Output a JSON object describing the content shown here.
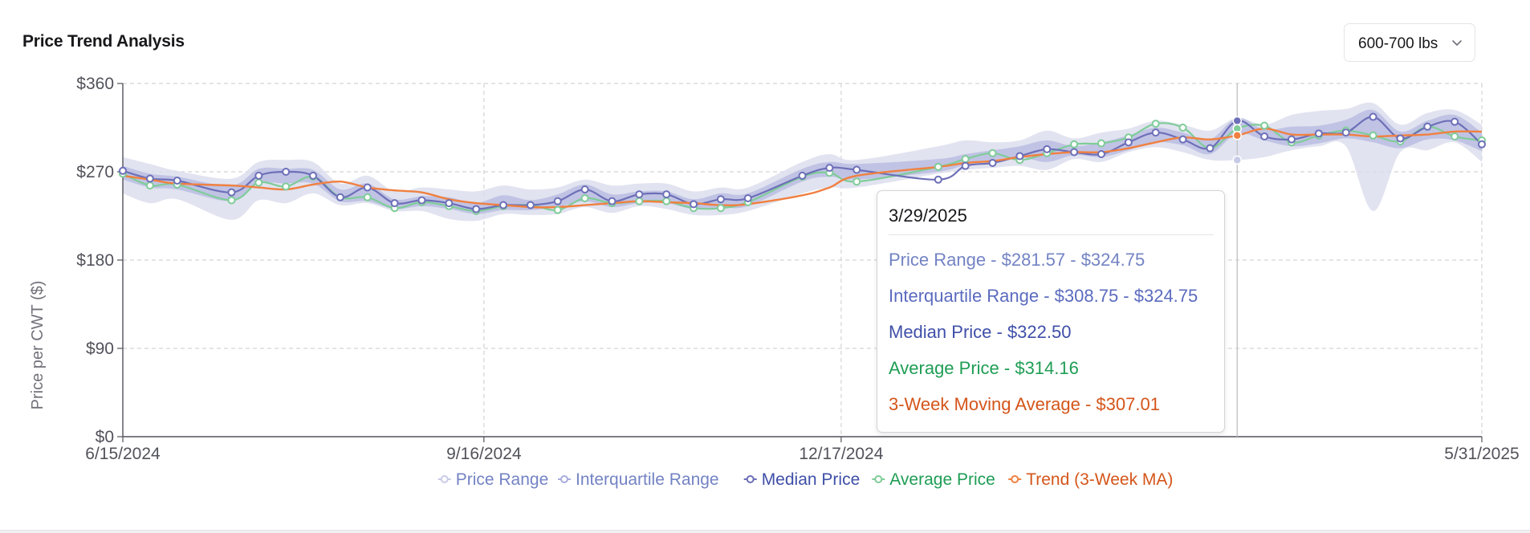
{
  "header": {
    "title": "Price Trend Analysis",
    "weight_select": {
      "value": "600-700 lbs"
    }
  },
  "tooltip": {
    "date": "3/29/2025",
    "price_range": "Price Range - $281.57 - $324.75",
    "interquartile_range": "Interquartile Range - $308.75 - $324.75",
    "median_price": "Median Price - $322.50",
    "average_price": "Average Price - $314.16",
    "moving_average": "3-Week Moving Average - $307.01"
  },
  "chart_data": {
    "type": "line",
    "title": "Price Trend Analysis",
    "ylabel": "Price per CWT ($)",
    "xlabel": "",
    "x_start": "6/15/2024",
    "x_end": "5/31/2025",
    "x_tick_labels": [
      "6/15/2024",
      "9/16/2024",
      "12/17/2024",
      "5/31/2025"
    ],
    "x_tick_positions": [
      "2024-06-15",
      "2024-09-16",
      "2024-12-17",
      "2025-05-31"
    ],
    "ylim": [
      0,
      360
    ],
    "y_ticks": [
      0,
      90,
      180,
      270,
      360
    ],
    "y_tick_labels": [
      "$0",
      "$90",
      "$180",
      "$270",
      "$360"
    ],
    "grid": true,
    "legend_position": "bottom",
    "colors": {
      "range_fill": "#d9dcec",
      "iqr_fill": "#a5a9db",
      "median": "#6d6fb8",
      "average": "#7fcc99",
      "trend": "#f08040",
      "median_text": "#3f4fa8",
      "range_text": "#7383c4",
      "iqr_text": "#7383c4",
      "average_text": "#1f9d55",
      "trend_text": "#d4551a",
      "grid": "#d4d4d8",
      "axis": "#52525b"
    },
    "legend": [
      {
        "key": "range",
        "label": "Price Range",
        "text_color": "#7383c4",
        "marker_color": "#c7cbe6"
      },
      {
        "key": "iqr",
        "label": "Interquartile Range",
        "text_color": "#7383c4",
        "marker_color": "#a8acdc"
      },
      {
        "key": "median",
        "label": "Median Price",
        "text_color": "#3f4fa8",
        "marker_color": "#6d6fb8"
      },
      {
        "key": "average",
        "label": "Average Price",
        "text_color": "#1f9d55",
        "marker_color": "#7fcc99"
      },
      {
        "key": "trend",
        "label": "Trend (3-Week MA)",
        "text_color": "#d4551a",
        "marker_color": "#f08040"
      }
    ],
    "dates": [
      "2024-06-15",
      "2024-06-22",
      "2024-06-29",
      "2024-07-13",
      "2024-07-20",
      "2024-07-27",
      "2024-08-03",
      "2024-08-10",
      "2024-08-17",
      "2024-08-24",
      "2024-08-31",
      "2024-09-07",
      "2024-09-14",
      "2024-09-21",
      "2024-09-28",
      "2024-10-05",
      "2024-10-12",
      "2024-10-19",
      "2024-10-26",
      "2024-11-02",
      "2024-11-09",
      "2024-11-16",
      "2024-11-23",
      "2024-12-07",
      "2024-12-14",
      "2024-12-21",
      "2025-01-11",
      "2025-01-18",
      "2025-01-25",
      "2025-02-01",
      "2025-02-08",
      "2025-02-15",
      "2025-02-22",
      "2025-03-01",
      "2025-03-08",
      "2025-03-15",
      "2025-03-22",
      "2025-03-29",
      "2025-04-05",
      "2025-04-12",
      "2025-04-19",
      "2025-04-26",
      "2025-05-03",
      "2025-05-10",
      "2025-05-17",
      "2025-05-24",
      "2025-05-31"
    ],
    "series": [
      {
        "name": "Median Price",
        "values": [
          271,
          263,
          261,
          249,
          266,
          270,
          266,
          244,
          254,
          238,
          241,
          238,
          232,
          236,
          236,
          240,
          252,
          240,
          247,
          247,
          237,
          242,
          243,
          266,
          274,
          272,
          262,
          276,
          279,
          286,
          293,
          290,
          288,
          300,
          310,
          303,
          294,
          322,
          306,
          303,
          309,
          310,
          326,
          304,
          316,
          321,
          298
        ]
      },
      {
        "name": "Average Price",
        "values": [
          268,
          256,
          257,
          241,
          259,
          255,
          265,
          244,
          244,
          233,
          239,
          235,
          230,
          235,
          236,
          231,
          243,
          238,
          240,
          240,
          233,
          233,
          239,
          265,
          269,
          260,
          275,
          283,
          289,
          282,
          289,
          298,
          299,
          305,
          319,
          315,
          294,
          314,
          317,
          300,
          307,
          312,
          307,
          301,
          316,
          306,
          302
        ]
      },
      {
        "name": "Trend (3-Week MA)",
        "values": [
          266,
          262,
          258,
          256,
          254,
          252,
          257,
          260,
          254,
          251,
          249,
          242,
          238,
          236,
          234,
          234,
          236,
          238,
          240,
          239,
          238,
          236,
          237,
          246,
          254,
          266,
          275,
          279,
          281,
          285,
          288,
          290,
          290,
          294,
          300,
          305,
          303,
          307,
          314,
          308,
          308,
          308,
          306,
          307,
          308,
          311,
          311
        ]
      },
      {
        "name": "Interquartile Range",
        "low": [
          262,
          254,
          252,
          240,
          258,
          258,
          258,
          240,
          240,
          232,
          235,
          232,
          227,
          231,
          231,
          234,
          240,
          234,
          238,
          238,
          232,
          234,
          235,
          260,
          265,
          262,
          270,
          277,
          282,
          285,
          280,
          287,
          285,
          292,
          300,
          297,
          288,
          309,
          302,
          296,
          299,
          304,
          300,
          294,
          303,
          302,
          291
        ],
        "high": [
          276,
          268,
          265,
          256,
          273,
          273,
          272,
          252,
          258,
          242,
          245,
          244,
          238,
          246,
          241,
          247,
          257,
          247,
          250,
          250,
          242,
          248,
          248,
          273,
          280,
          278,
          283,
          288,
          292,
          296,
          302,
          296,
          300,
          307,
          315,
          310,
          303,
          325,
          313,
          316,
          317,
          323,
          333,
          311,
          322,
          328,
          310
        ]
      },
      {
        "name": "Price Range",
        "low": [
          248,
          238,
          242,
          221,
          241,
          238,
          248,
          236,
          238,
          230,
          230,
          222,
          220,
          227,
          226,
          227,
          234,
          228,
          235,
          232,
          226,
          226,
          230,
          248,
          254,
          254,
          268,
          272,
          274,
          276,
          272,
          283,
          280,
          290,
          295,
          290,
          282,
          282,
          285,
          292,
          296,
          296,
          230,
          290,
          292,
          300,
          280
        ],
        "high": [
          285,
          278,
          271,
          263,
          280,
          282,
          280,
          258,
          266,
          250,
          254,
          252,
          250,
          256,
          252,
          254,
          262,
          256,
          258,
          258,
          250,
          254,
          254,
          280,
          288,
          282,
          296,
          302,
          300,
          302,
          312,
          304,
          310,
          314,
          322,
          318,
          312,
          325,
          318,
          328,
          332,
          334,
          340,
          318,
          330,
          333,
          318
        ]
      }
    ],
    "highlight": {
      "date": "2025-03-29",
      "index": 37
    }
  }
}
